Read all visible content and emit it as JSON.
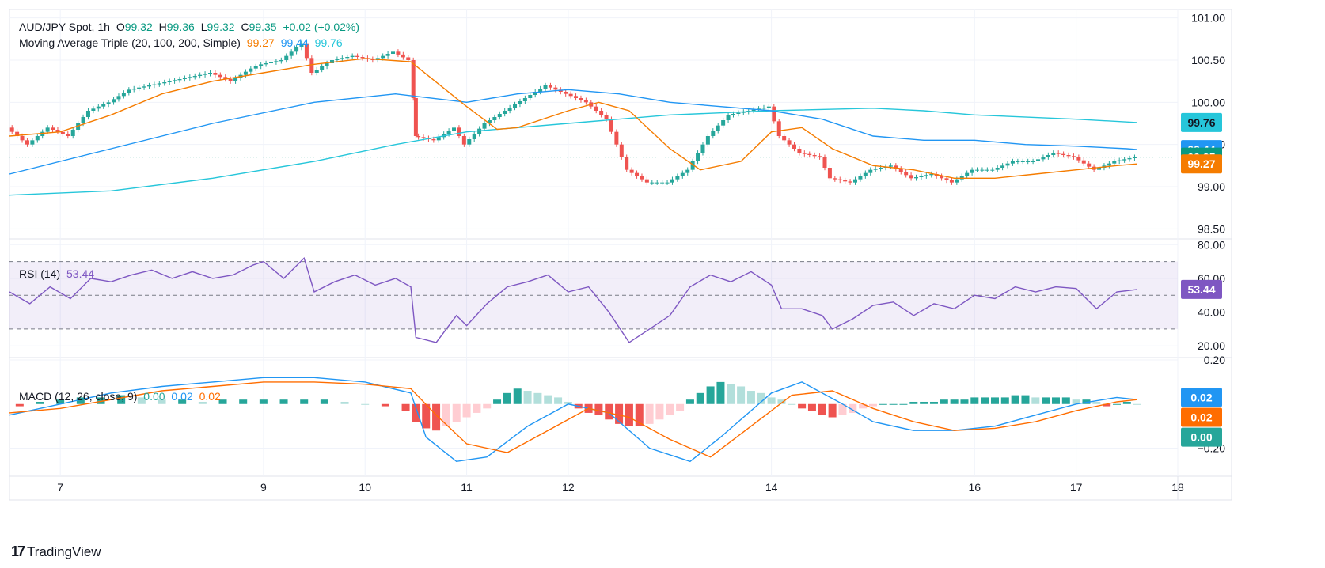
{
  "symbol": {
    "title": "AUD/JPY Spot, 1h",
    "ohlc": [
      {
        "k": "O",
        "v": "99.32"
      },
      {
        "k": "H",
        "v": "99.36"
      },
      {
        "k": "L",
        "v": "99.32"
      },
      {
        "k": "C",
        "v": "99.35"
      }
    ],
    "change": "+0.02 (+0.02%)"
  },
  "indicators": {
    "ma": {
      "label": "Moving Average Triple (20, 100, 200, Simple)",
      "v20": "99.27",
      "v100": "99.44",
      "v200": "99.76"
    },
    "rsi": {
      "label": "RSI (14)",
      "value": "53.44"
    },
    "macd": {
      "label": "MACD (12, 26, close, 9)",
      "hist": "0.00",
      "macd": "0.02",
      "signal": "0.02"
    }
  },
  "colors": {
    "up": "#26a69a",
    "down": "#ef5350",
    "ma20": "#f57c00",
    "ma100": "#2196f3",
    "ma200": "#26c6da",
    "rsi": "#7e57c2",
    "macd": "#2196f3",
    "signal": "#ff6d00",
    "hist_up_strong": "#26a69a",
    "hist_up_weak": "#b2dfdb",
    "hist_down_strong": "#ef5350",
    "hist_down_weak": "#ffcdd2"
  },
  "branding": "TradingView",
  "chart_data": {
    "type": "candlestick",
    "x_tick_labels": [
      "7",
      "9",
      "10",
      "11",
      "12",
      "14",
      "16",
      "17",
      "18"
    ],
    "x_ticks": [
      7,
      9,
      10,
      11,
      12,
      14,
      16,
      17,
      18
    ],
    "x_range": [
      6.5,
      18
    ],
    "price_axis": {
      "ylim": [
        98.4,
        101.1
      ],
      "ticks": [
        98.5,
        99.0,
        99.5,
        100.0,
        100.5,
        101.0
      ],
      "tick_labels": [
        "98.50",
        "99.00",
        "99.50",
        "100.00",
        "100.50",
        "101.00"
      ],
      "labels": [
        {
          "text": "99.76",
          "value": 99.76,
          "color": "#26c6da"
        },
        {
          "text": "99.44",
          "value": 99.44,
          "color": "#2196f3"
        },
        {
          "text": "99.35",
          "value": 99.35,
          "color": "#089981"
        },
        {
          "text": "99.27",
          "value": 99.27,
          "color": "#f57c00"
        }
      ]
    },
    "rsi_axis": {
      "ylim": [
        14,
        82
      ],
      "ticks": [
        20,
        40,
        60,
        80
      ],
      "tick_labels": [
        "20.00",
        "40.00",
        "60.00",
        "80.00"
      ],
      "bands": [
        30,
        50,
        70
      ],
      "current": {
        "text": "53.44",
        "value": 53.44
      }
    },
    "macd_axis": {
      "ylim": [
        -0.32,
        0.2
      ],
      "ticks": [
        -0.2,
        0.2
      ],
      "tick_labels": [
        "−0.20",
        "0.20"
      ],
      "labels": [
        {
          "text": "0.02",
          "value": 0.03,
          "color": "#2196f3"
        },
        {
          "text": "0.02",
          "value": -0.06,
          "color": "#ff6d00"
        },
        {
          "text": "0.00",
          "value": -0.15,
          "color": "#26a69a"
        }
      ]
    },
    "price_series": [
      [
        6.5,
        99.7
      ],
      [
        6.7,
        99.5
      ],
      [
        6.9,
        99.7
      ],
      [
        7.1,
        99.6
      ],
      [
        7.3,
        99.9
      ],
      [
        7.5,
        100.0
      ],
      [
        7.7,
        100.15
      ],
      [
        7.9,
        100.2
      ],
      [
        8.1,
        100.25
      ],
      [
        8.3,
        100.3
      ],
      [
        8.5,
        100.35
      ],
      [
        8.7,
        100.25
      ],
      [
        8.9,
        100.4
      ],
      [
        9.0,
        100.45
      ],
      [
        9.2,
        100.5
      ],
      [
        9.4,
        100.7
      ],
      [
        9.5,
        100.35
      ],
      [
        9.7,
        100.5
      ],
      [
        9.9,
        100.55
      ],
      [
        10.1,
        100.5
      ],
      [
        10.3,
        100.6
      ],
      [
        10.45,
        100.5
      ],
      [
        10.5,
        99.6
      ],
      [
        10.7,
        99.55
      ],
      [
        10.9,
        99.7
      ],
      [
        11.0,
        99.5
      ],
      [
        11.2,
        99.75
      ],
      [
        11.4,
        99.9
      ],
      [
        11.6,
        100.05
      ],
      [
        11.8,
        100.2
      ],
      [
        12.0,
        100.1
      ],
      [
        12.2,
        100.0
      ],
      [
        12.4,
        99.8
      ],
      [
        12.6,
        99.2
      ],
      [
        12.8,
        99.05
      ],
      [
        13.0,
        99.05
      ],
      [
        13.2,
        99.2
      ],
      [
        13.4,
        99.6
      ],
      [
        13.6,
        99.85
      ],
      [
        13.8,
        99.9
      ],
      [
        14.0,
        99.95
      ],
      [
        14.1,
        99.6
      ],
      [
        14.3,
        99.4
      ],
      [
        14.5,
        99.35
      ],
      [
        14.6,
        99.1
      ],
      [
        14.8,
        99.05
      ],
      [
        15.0,
        99.2
      ],
      [
        15.2,
        99.25
      ],
      [
        15.4,
        99.1
      ],
      [
        15.6,
        99.15
      ],
      [
        15.8,
        99.05
      ],
      [
        16.0,
        99.2
      ],
      [
        16.2,
        99.2
      ],
      [
        16.4,
        99.3
      ],
      [
        16.6,
        99.3
      ],
      [
        16.8,
        99.4
      ],
      [
        17.0,
        99.35
      ],
      [
        17.2,
        99.2
      ],
      [
        17.4,
        99.3
      ],
      [
        17.6,
        99.35
      ]
    ],
    "ma20": [
      [
        6.5,
        99.6
      ],
      [
        7.0,
        99.65
      ],
      [
        7.5,
        99.85
      ],
      [
        8.0,
        100.1
      ],
      [
        8.5,
        100.25
      ],
      [
        9.0,
        100.35
      ],
      [
        9.5,
        100.45
      ],
      [
        10.0,
        100.52
      ],
      [
        10.45,
        100.48
      ],
      [
        11.0,
        99.95
      ],
      [
        11.3,
        99.68
      ],
      [
        11.5,
        99.7
      ],
      [
        12.0,
        99.9
      ],
      [
        12.3,
        100.0
      ],
      [
        12.6,
        99.9
      ],
      [
        13.0,
        99.45
      ],
      [
        13.3,
        99.2
      ],
      [
        13.7,
        99.3
      ],
      [
        14.0,
        99.65
      ],
      [
        14.3,
        99.7
      ],
      [
        14.6,
        99.45
      ],
      [
        15.0,
        99.25
      ],
      [
        15.4,
        99.2
      ],
      [
        15.8,
        99.1
      ],
      [
        16.2,
        99.1
      ],
      [
        16.6,
        99.15
      ],
      [
        17.0,
        99.2
      ],
      [
        17.4,
        99.25
      ],
      [
        17.6,
        99.27
      ]
    ],
    "ma100": [
      [
        6.5,
        99.15
      ],
      [
        7.5,
        99.45
      ],
      [
        8.5,
        99.75
      ],
      [
        9.5,
        100.0
      ],
      [
        10.3,
        100.1
      ],
      [
        11.0,
        100.0
      ],
      [
        11.5,
        100.1
      ],
      [
        12.0,
        100.15
      ],
      [
        12.5,
        100.1
      ],
      [
        13.0,
        100.0
      ],
      [
        13.5,
        99.95
      ],
      [
        14.0,
        99.9
      ],
      [
        14.5,
        99.8
      ],
      [
        15.0,
        99.6
      ],
      [
        15.5,
        99.55
      ],
      [
        16.0,
        99.55
      ],
      [
        16.5,
        99.5
      ],
      [
        17.0,
        99.48
      ],
      [
        17.5,
        99.45
      ],
      [
        17.6,
        99.44
      ]
    ],
    "ma200": [
      [
        6.5,
        98.9
      ],
      [
        7.5,
        98.95
      ],
      [
        8.5,
        99.1
      ],
      [
        9.5,
        99.3
      ],
      [
        10.3,
        99.5
      ],
      [
        11.0,
        99.65
      ],
      [
        12.0,
        99.75
      ],
      [
        13.0,
        99.85
      ],
      [
        14.0,
        99.9
      ],
      [
        15.0,
        99.93
      ],
      [
        15.5,
        99.9
      ],
      [
        16.0,
        99.85
      ],
      [
        17.0,
        99.8
      ],
      [
        17.6,
        99.76
      ]
    ],
    "rsi": [
      [
        6.5,
        52
      ],
      [
        6.7,
        45
      ],
      [
        6.9,
        55
      ],
      [
        7.1,
        48
      ],
      [
        7.3,
        60
      ],
      [
        7.5,
        58
      ],
      [
        7.7,
        62
      ],
      [
        7.9,
        65
      ],
      [
        8.1,
        60
      ],
      [
        8.3,
        64
      ],
      [
        8.5,
        60
      ],
      [
        8.7,
        62
      ],
      [
        8.9,
        68
      ],
      [
        9.0,
        70
      ],
      [
        9.2,
        60
      ],
      [
        9.4,
        72
      ],
      [
        9.5,
        52
      ],
      [
        9.7,
        58
      ],
      [
        9.9,
        62
      ],
      [
        10.1,
        56
      ],
      [
        10.3,
        60
      ],
      [
        10.45,
        55
      ],
      [
        10.5,
        25
      ],
      [
        10.7,
        22
      ],
      [
        10.9,
        38
      ],
      [
        11.0,
        32
      ],
      [
        11.2,
        45
      ],
      [
        11.4,
        55
      ],
      [
        11.6,
        58
      ],
      [
        11.8,
        62
      ],
      [
        12.0,
        52
      ],
      [
        12.2,
        55
      ],
      [
        12.4,
        40
      ],
      [
        12.6,
        22
      ],
      [
        12.8,
        30
      ],
      [
        13.0,
        38
      ],
      [
        13.2,
        55
      ],
      [
        13.4,
        62
      ],
      [
        13.6,
        58
      ],
      [
        13.8,
        64
      ],
      [
        14.0,
        56
      ],
      [
        14.1,
        42
      ],
      [
        14.3,
        42
      ],
      [
        14.5,
        38
      ],
      [
        14.6,
        30
      ],
      [
        14.8,
        36
      ],
      [
        15.0,
        44
      ],
      [
        15.2,
        46
      ],
      [
        15.4,
        38
      ],
      [
        15.6,
        45
      ],
      [
        15.8,
        42
      ],
      [
        16.0,
        50
      ],
      [
        16.2,
        48
      ],
      [
        16.4,
        55
      ],
      [
        16.6,
        52
      ],
      [
        16.8,
        55
      ],
      [
        17.0,
        54
      ],
      [
        17.2,
        42
      ],
      [
        17.4,
        52
      ],
      [
        17.6,
        53.44
      ]
    ],
    "macd_line": [
      [
        6.5,
        -0.05
      ],
      [
        7.0,
        0.0
      ],
      [
        7.5,
        0.05
      ],
      [
        8.0,
        0.08
      ],
      [
        8.5,
        0.1
      ],
      [
        9.0,
        0.12
      ],
      [
        9.5,
        0.12
      ],
      [
        10.0,
        0.1
      ],
      [
        10.45,
        0.05
      ],
      [
        10.6,
        -0.15
      ],
      [
        10.9,
        -0.26
      ],
      [
        11.2,
        -0.24
      ],
      [
        11.6,
        -0.1
      ],
      [
        12.0,
        0.0
      ],
      [
        12.4,
        -0.04
      ],
      [
        12.8,
        -0.2
      ],
      [
        13.2,
        -0.26
      ],
      [
        13.5,
        -0.15
      ],
      [
        14.0,
        0.05
      ],
      [
        14.3,
        0.1
      ],
      [
        14.7,
        0.0
      ],
      [
        15.0,
        -0.08
      ],
      [
        15.4,
        -0.12
      ],
      [
        15.8,
        -0.12
      ],
      [
        16.2,
        -0.1
      ],
      [
        16.6,
        -0.05
      ],
      [
        17.0,
        0.0
      ],
      [
        17.4,
        0.03
      ],
      [
        17.6,
        0.02
      ]
    ],
    "signal_line": [
      [
        6.5,
        -0.04
      ],
      [
        7.0,
        -0.02
      ],
      [
        7.5,
        0.02
      ],
      [
        8.0,
        0.06
      ],
      [
        8.5,
        0.08
      ],
      [
        9.0,
        0.1
      ],
      [
        9.5,
        0.1
      ],
      [
        10.0,
        0.09
      ],
      [
        10.45,
        0.07
      ],
      [
        10.7,
        -0.05
      ],
      [
        11.0,
        -0.18
      ],
      [
        11.4,
        -0.22
      ],
      [
        11.8,
        -0.12
      ],
      [
        12.2,
        -0.02
      ],
      [
        12.6,
        -0.06
      ],
      [
        13.0,
        -0.16
      ],
      [
        13.4,
        -0.24
      ],
      [
        13.8,
        -0.1
      ],
      [
        14.2,
        0.04
      ],
      [
        14.6,
        0.06
      ],
      [
        15.0,
        -0.02
      ],
      [
        15.4,
        -0.08
      ],
      [
        15.8,
        -0.12
      ],
      [
        16.2,
        -0.11
      ],
      [
        16.6,
        -0.08
      ],
      [
        17.0,
        -0.03
      ],
      [
        17.4,
        0.01
      ],
      [
        17.6,
        0.02
      ]
    ],
    "macd_histogram": [
      [
        6.6,
        -0.01
      ],
      [
        6.8,
        0.01
      ],
      [
        7.0,
        0.02
      ],
      [
        7.2,
        0.03
      ],
      [
        7.4,
        0.03
      ],
      [
        7.6,
        0.04
      ],
      [
        7.8,
        0.03
      ],
      [
        8.0,
        0.02
      ],
      [
        8.2,
        0.02
      ],
      [
        8.4,
        0.01
      ],
      [
        8.6,
        0.02
      ],
      [
        8.8,
        0.02
      ],
      [
        9.0,
        0.02
      ],
      [
        9.2,
        0.02
      ],
      [
        9.4,
        0.02
      ],
      [
        9.6,
        0.02
      ],
      [
        9.8,
        0.01
      ],
      [
        10.0,
        0.0
      ],
      [
        10.2,
        -0.01
      ],
      [
        10.4,
        -0.03
      ],
      [
        10.5,
        -0.08
      ],
      [
        10.6,
        -0.11
      ],
      [
        10.7,
        -0.12
      ],
      [
        10.8,
        -0.1
      ],
      [
        10.9,
        -0.08
      ],
      [
        11.0,
        -0.06
      ],
      [
        11.1,
        -0.04
      ],
      [
        11.2,
        -0.02
      ],
      [
        11.3,
        0.02
      ],
      [
        11.4,
        0.05
      ],
      [
        11.5,
        0.07
      ],
      [
        11.6,
        0.06
      ],
      [
        11.7,
        0.05
      ],
      [
        11.8,
        0.04
      ],
      [
        11.9,
        0.03
      ],
      [
        12.0,
        0.01
      ],
      [
        12.1,
        -0.02
      ],
      [
        12.2,
        -0.04
      ],
      [
        12.3,
        -0.05
      ],
      [
        12.4,
        -0.07
      ],
      [
        12.5,
        -0.09
      ],
      [
        12.6,
        -0.1
      ],
      [
        12.7,
        -0.1
      ],
      [
        12.8,
        -0.09
      ],
      [
        12.9,
        -0.07
      ],
      [
        13.0,
        -0.05
      ],
      [
        13.1,
        -0.03
      ],
      [
        13.2,
        0.02
      ],
      [
        13.3,
        0.05
      ],
      [
        13.4,
        0.08
      ],
      [
        13.5,
        0.1
      ],
      [
        13.6,
        0.09
      ],
      [
        13.7,
        0.08
      ],
      [
        13.8,
        0.06
      ],
      [
        13.9,
        0.05
      ],
      [
        14.0,
        0.03
      ],
      [
        14.1,
        0.02
      ],
      [
        14.2,
        0.0
      ],
      [
        14.3,
        -0.02
      ],
      [
        14.4,
        -0.03
      ],
      [
        14.5,
        -0.05
      ],
      [
        14.6,
        -0.06
      ],
      [
        14.7,
        -0.05
      ],
      [
        14.8,
        -0.04
      ],
      [
        14.9,
        -0.02
      ],
      [
        15.0,
        -0.01
      ],
      [
        15.1,
        0.0
      ],
      [
        15.2,
        0.0
      ],
      [
        15.3,
        0.0
      ],
      [
        15.4,
        0.01
      ],
      [
        15.5,
        0.01
      ],
      [
        15.6,
        0.01
      ],
      [
        15.7,
        0.02
      ],
      [
        15.8,
        0.02
      ],
      [
        15.9,
        0.02
      ],
      [
        16.0,
        0.03
      ],
      [
        16.1,
        0.03
      ],
      [
        16.2,
        0.03
      ],
      [
        16.3,
        0.03
      ],
      [
        16.4,
        0.04
      ],
      [
        16.5,
        0.04
      ],
      [
        16.6,
        0.03
      ],
      [
        16.7,
        0.03
      ],
      [
        16.8,
        0.03
      ],
      [
        16.9,
        0.03
      ],
      [
        17.0,
        0.02
      ],
      [
        17.1,
        0.02
      ],
      [
        17.2,
        0.01
      ],
      [
        17.3,
        -0.01
      ],
      [
        17.4,
        0.0
      ],
      [
        17.5,
        0.01
      ],
      [
        17.6,
        0.0
      ]
    ]
  }
}
